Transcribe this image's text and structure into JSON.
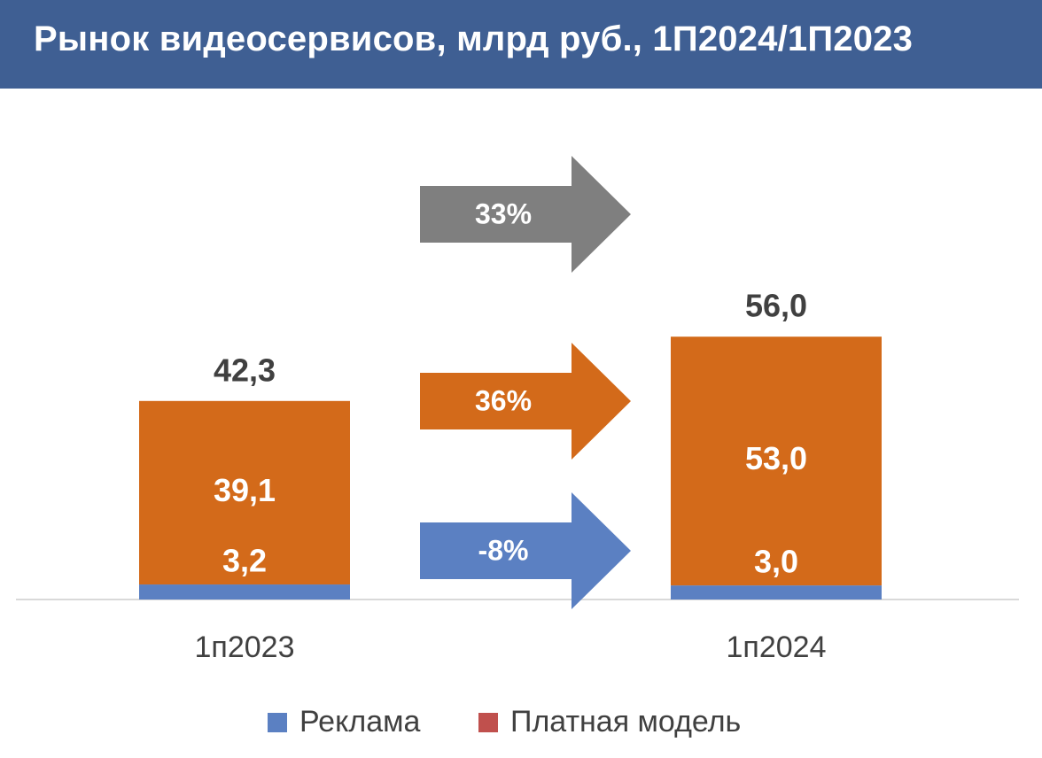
{
  "title": "Рынок видеосервисов, млрд руб., 1П2024/1П2023",
  "colors": {
    "header": "#3f5f93",
    "advertising": "#5b80c2",
    "paid": "#d36a1a",
    "growth_total": "#7f7f7f"
  },
  "chart_data": {
    "type": "bar",
    "stacked": true,
    "categories": [
      "1п2023",
      "1п2024"
    ],
    "series": [
      {
        "name": "Реклама",
        "values": [
          3.2,
          3.0
        ],
        "labels": [
          "3,2",
          "3,0"
        ]
      },
      {
        "name": "Платная модель",
        "values": [
          39.1,
          53.0
        ],
        "labels": [
          "39,1",
          "53,0"
        ]
      }
    ],
    "totals": [
      42.3,
      56.0
    ],
    "total_labels": [
      "42,3",
      "56,0"
    ],
    "ylim": [
      0,
      60
    ],
    "growth_arrows": [
      {
        "label": "33%",
        "series": "total"
      },
      {
        "label": "36%",
        "series": "Платная модель"
      },
      {
        "label": "-8%",
        "series": "Реклама"
      }
    ],
    "legend": [
      "Реклама",
      "Платная модель"
    ],
    "legend_position": "bottom",
    "grid": false
  }
}
